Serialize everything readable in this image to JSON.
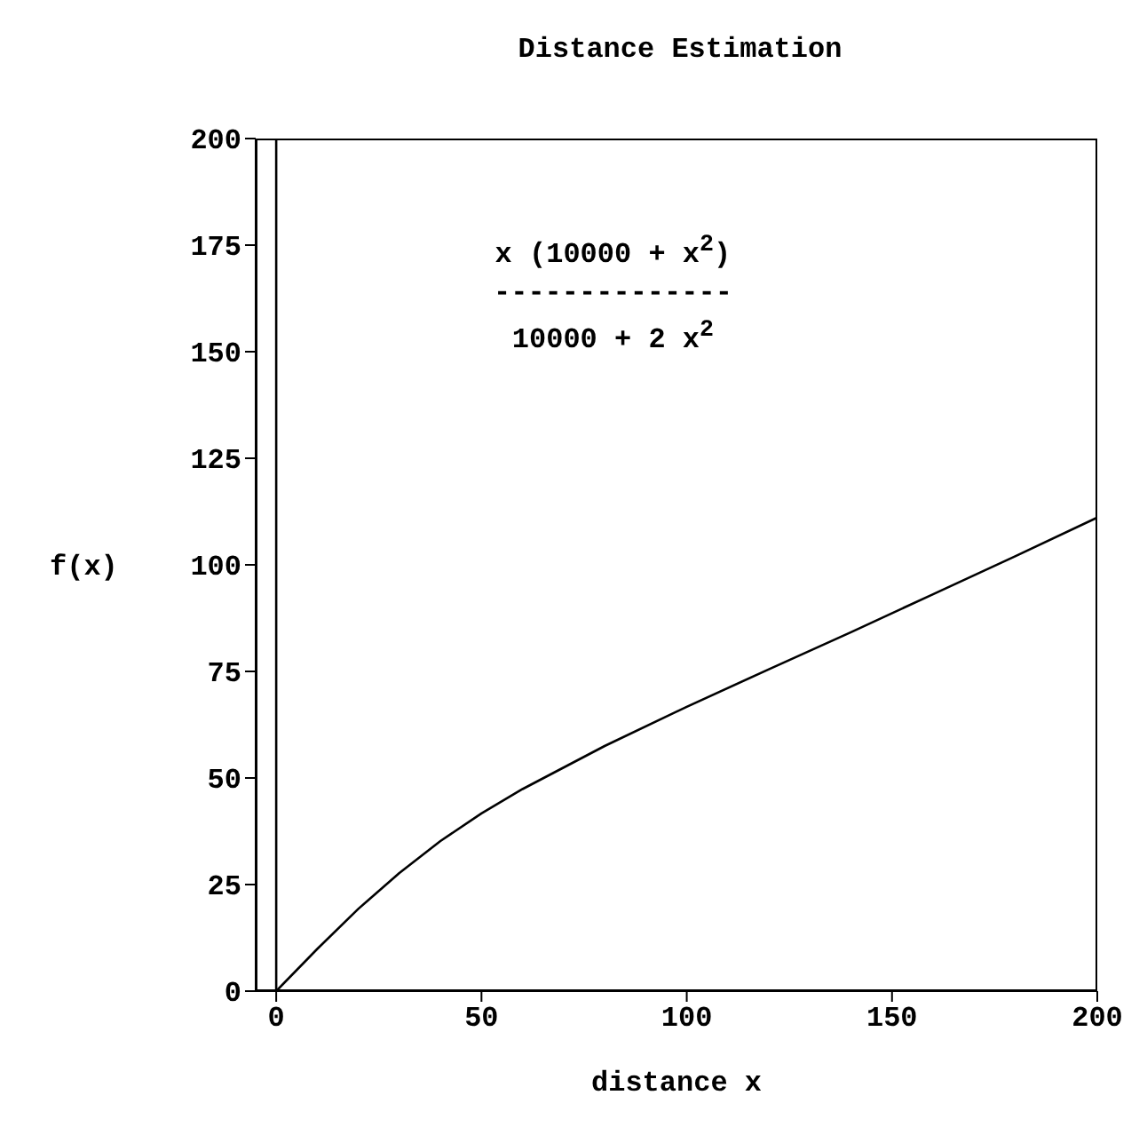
{
  "chart_data": {
    "type": "line",
    "title": "Distance Estimation",
    "xlabel": "distance x",
    "ylabel": "f(x)",
    "x": [
      0,
      10,
      20,
      30,
      40,
      50,
      60,
      80,
      100,
      120,
      140,
      160,
      180,
      200
    ],
    "series": [
      {
        "color": "#000000",
        "values": [
          0,
          9.9,
          19.3,
          27.7,
          35.2,
          41.7,
          47.4,
          57.5,
          66.7,
          75.5,
          84.2,
          93.1,
          102,
          111.1
        ]
      }
    ],
    "xlim": [
      -5,
      200
    ],
    "xticks": [
      0,
      50,
      100,
      150,
      200
    ],
    "ylim": [
      0,
      200
    ],
    "yticks": [
      0,
      25,
      50,
      75,
      100,
      125,
      150,
      175,
      200
    ],
    "ref_lines": [
      {
        "axis": "x",
        "value": 0,
        "color": "#000000"
      }
    ],
    "annotations": [
      "x (10000 + x$^{2}$)",
      "--------------",
      "10000 + 2 x$^{2}$"
    ],
    "grid": false,
    "marker": "none",
    "line_style": "solid"
  }
}
